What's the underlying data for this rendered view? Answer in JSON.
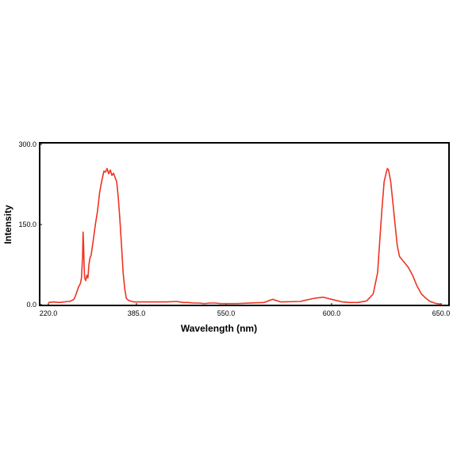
{
  "chart_data": {
    "type": "line",
    "title": "",
    "xlabel": "Wavelength (nm)",
    "ylabel": "Intensity",
    "x_tick_labels": [
      "220.0",
      "385.0",
      "550.0",
      "600.0",
      "650.0"
    ],
    "y_tick_labels": [
      "0.0",
      "150.0",
      "300.0"
    ],
    "ylim": [
      0,
      300
    ],
    "grid": false,
    "legend": "none",
    "series": [
      {
        "color": "#ee3322",
        "points": [
          [
            220,
            4
          ],
          [
            230,
            5
          ],
          [
            240,
            4
          ],
          [
            250,
            5
          ],
          [
            255,
            6
          ],
          [
            260,
            6
          ],
          [
            268,
            10
          ],
          [
            272,
            20
          ],
          [
            276,
            32
          ],
          [
            280,
            40
          ],
          [
            282,
            50
          ],
          [
            284,
            90
          ],
          [
            285,
            136
          ],
          [
            286,
            110
          ],
          [
            287,
            70
          ],
          [
            288,
            50
          ],
          [
            290,
            45
          ],
          [
            292,
            55
          ],
          [
            294,
            50
          ],
          [
            296,
            75
          ],
          [
            298,
            88
          ],
          [
            300,
            92
          ],
          [
            304,
            120
          ],
          [
            308,
            150
          ],
          [
            312,
            175
          ],
          [
            316,
            210
          ],
          [
            320,
            232
          ],
          [
            324,
            250
          ],
          [
            327,
            248
          ],
          [
            330,
            255
          ],
          [
            333,
            245
          ],
          [
            336,
            252
          ],
          [
            339,
            242
          ],
          [
            342,
            246
          ],
          [
            345,
            238
          ],
          [
            348,
            230
          ],
          [
            351,
            200
          ],
          [
            354,
            160
          ],
          [
            357,
            110
          ],
          [
            360,
            60
          ],
          [
            363,
            30
          ],
          [
            366,
            12
          ],
          [
            370,
            8
          ],
          [
            380,
            5
          ],
          [
            400,
            5
          ],
          [
            420,
            5
          ],
          [
            440,
            5
          ],
          [
            460,
            6
          ],
          [
            470,
            4
          ],
          [
            480,
            4
          ],
          [
            490,
            3
          ],
          [
            500,
            3
          ],
          [
            510,
            2
          ],
          [
            520,
            3
          ],
          [
            530,
            3
          ],
          [
            540,
            2
          ],
          [
            555,
            2
          ],
          [
            568,
            4
          ],
          [
            572,
            10
          ],
          [
            576,
            5
          ],
          [
            585,
            6
          ],
          [
            592,
            12
          ],
          [
            596,
            14
          ],
          [
            600,
            10
          ],
          [
            605,
            5
          ],
          [
            608,
            4
          ],
          [
            612,
            4
          ],
          [
            616,
            7
          ],
          [
            619,
            20
          ],
          [
            621,
            60
          ],
          [
            622,
            120
          ],
          [
            623,
            180
          ],
          [
            624,
            230
          ],
          [
            625,
            248
          ],
          [
            625.5,
            255
          ],
          [
            626,
            252
          ],
          [
            627,
            230
          ],
          [
            628,
            190
          ],
          [
            629,
            150
          ],
          [
            630,
            110
          ],
          [
            631,
            90
          ],
          [
            633,
            80
          ],
          [
            635,
            70
          ],
          [
            637,
            55
          ],
          [
            639,
            35
          ],
          [
            641,
            20
          ],
          [
            643,
            12
          ],
          [
            645,
            6
          ],
          [
            647,
            3
          ],
          [
            648,
            2
          ],
          [
            650,
            1
          ]
        ]
      }
    ]
  }
}
